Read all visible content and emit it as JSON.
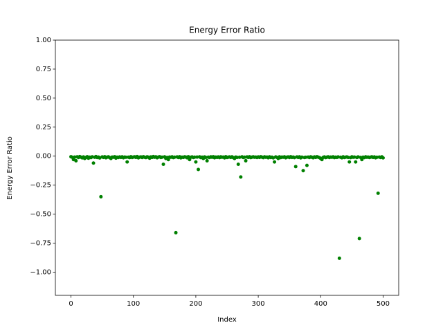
{
  "chart_data": {
    "type": "scatter",
    "title": "Energy Error Ratio",
    "xlabel": "Index",
    "ylabel": "Energy Error Ratio",
    "color": "#008000",
    "xlim": [
      -25,
      525
    ],
    "xticks": [
      0,
      100,
      200,
      300,
      400,
      500
    ],
    "ylim": [
      -1.2,
      1.0
    ],
    "yticks": [
      {
        "value": -1.0,
        "label": "−1.00"
      },
      {
        "value": -0.75,
        "label": "−0.75"
      },
      {
        "value": -0.5,
        "label": "−0.50"
      },
      {
        "value": -0.25,
        "label": "−0.25"
      },
      {
        "value": 0,
        "label": "0.00"
      },
      {
        "value": 0.25,
        "label": "0.25"
      },
      {
        "value": 0.5,
        "label": "0.50"
      },
      {
        "value": 0.75,
        "label": "0.75"
      },
      {
        "value": 1.0,
        "label": "1.00"
      }
    ],
    "x": [
      0,
      2,
      4,
      6,
      8,
      10,
      12,
      14,
      16,
      18,
      20,
      22,
      24,
      26,
      28,
      30,
      32,
      34,
      36,
      38,
      40,
      42,
      44,
      46,
      48,
      50,
      52,
      54,
      56,
      58,
      60,
      62,
      64,
      66,
      68,
      70,
      72,
      74,
      76,
      78,
      80,
      82,
      84,
      86,
      88,
      90,
      92,
      94,
      96,
      98,
      100,
      102,
      104,
      106,
      108,
      110,
      112,
      114,
      116,
      118,
      120,
      122,
      124,
      126,
      128,
      130,
      132,
      134,
      136,
      138,
      140,
      142,
      144,
      146,
      148,
      150,
      152,
      154,
      156,
      158,
      160,
      162,
      164,
      166,
      168,
      170,
      172,
      174,
      176,
      178,
      180,
      182,
      184,
      186,
      188,
      190,
      192,
      194,
      196,
      198,
      200,
      202,
      204,
      206,
      208,
      210,
      212,
      214,
      216,
      218,
      220,
      222,
      224,
      226,
      228,
      230,
      232,
      234,
      236,
      238,
      240,
      242,
      244,
      246,
      248,
      250,
      252,
      254,
      256,
      258,
      260,
      262,
      264,
      266,
      268,
      270,
      272,
      274,
      276,
      278,
      280,
      282,
      284,
      286,
      288,
      290,
      292,
      294,
      296,
      298,
      300,
      302,
      304,
      306,
      308,
      310,
      312,
      314,
      316,
      318,
      320,
      322,
      324,
      326,
      328,
      330,
      332,
      334,
      336,
      338,
      340,
      342,
      344,
      346,
      348,
      350,
      352,
      354,
      356,
      358,
      360,
      362,
      364,
      366,
      368,
      370,
      372,
      374,
      376,
      378,
      380,
      382,
      384,
      386,
      388,
      390,
      392,
      394,
      396,
      398,
      400,
      402,
      404,
      406,
      408,
      410,
      412,
      414,
      416,
      418,
      420,
      422,
      424,
      426,
      428,
      430,
      432,
      434,
      436,
      438,
      440,
      442,
      444,
      446,
      448,
      450,
      452,
      454,
      456,
      458,
      460,
      462,
      464,
      466,
      468,
      470,
      472,
      474,
      476,
      478,
      480,
      482,
      484,
      486,
      488,
      490,
      492,
      494,
      496,
      498,
      500
    ],
    "values": [
      -0.005,
      -0.01,
      -0.03,
      -0.008,
      -0.04,
      -0.006,
      -0.012,
      -0.004,
      -0.009,
      -0.015,
      -0.007,
      -0.02,
      -0.011,
      -0.005,
      -0.018,
      -0.009,
      -0.013,
      -0.006,
      -0.06,
      -0.01,
      -0.004,
      -0.012,
      -0.008,
      -0.016,
      -0.35,
      -0.007,
      -0.011,
      -0.005,
      -0.014,
      -0.009,
      -0.006,
      -0.013,
      -0.02,
      -0.008,
      -0.01,
      -0.005,
      -0.017,
      -0.009,
      -0.012,
      -0.007,
      -0.011,
      -0.006,
      -0.014,
      -0.008,
      -0.01,
      -0.05,
      -0.009,
      -0.013,
      -0.005,
      -0.012,
      -0.008,
      -0.006,
      -0.011,
      -0.004,
      -0.015,
      -0.009,
      -0.007,
      -0.012,
      -0.005,
      -0.01,
      -0.013,
      -0.006,
      -0.009,
      -0.018,
      -0.007,
      -0.011,
      -0.004,
      -0.01,
      -0.006,
      -0.014,
      -0.008,
      -0.005,
      -0.012,
      -0.009,
      -0.07,
      -0.006,
      -0.02,
      -0.011,
      -0.03,
      -0.008,
      -0.01,
      -0.006,
      -0.013,
      -0.009,
      -0.66,
      -0.007,
      -0.012,
      -0.005,
      -0.015,
      -0.009,
      -0.011,
      -0.006,
      -0.008,
      -0.014,
      -0.005,
      -0.03,
      -0.01,
      -0.007,
      -0.012,
      -0.009,
      -0.05,
      -0.008,
      -0.115,
      -0.006,
      -0.013,
      -0.009,
      -0.02,
      -0.007,
      -0.011,
      -0.04,
      -0.009,
      -0.012,
      -0.006,
      -0.01,
      -0.005,
      -0.014,
      -0.008,
      -0.011,
      -0.007,
      -0.013,
      -0.006,
      -0.01,
      -0.008,
      -0.015,
      -0.005,
      -0.012,
      -0.009,
      -0.007,
      -0.011,
      -0.006,
      -0.013,
      -0.02,
      -0.008,
      -0.011,
      -0.07,
      -0.01,
      -0.18,
      -0.006,
      -0.012,
      -0.009,
      -0.04,
      -0.007,
      -0.011,
      -0.005,
      -0.013,
      -0.009,
      -0.006,
      -0.01,
      -0.008,
      -0.012,
      -0.007,
      -0.011,
      -0.005,
      -0.009,
      -0.013,
      -0.006,
      -0.01,
      -0.008,
      -0.014,
      -0.006,
      -0.012,
      -0.009,
      -0.015,
      -0.05,
      -0.007,
      -0.011,
      -0.02,
      -0.006,
      -0.013,
      -0.008,
      -0.01,
      -0.006,
      -0.014,
      -0.009,
      -0.007,
      -0.012,
      -0.005,
      -0.011,
      -0.008,
      -0.013,
      -0.09,
      -0.007,
      -0.011,
      -0.006,
      -0.015,
      -0.009,
      -0.125,
      -0.012,
      -0.01,
      -0.08,
      -0.008,
      -0.012,
      -0.006,
      -0.01,
      -0.014,
      -0.007,
      -0.011,
      -0.005,
      -0.009,
      -0.013,
      -0.02,
      -0.03,
      -0.011,
      -0.007,
      -0.013,
      -0.009,
      -0.006,
      -0.012,
      -0.008,
      -0.01,
      -0.006,
      -0.013,
      -0.009,
      -0.011,
      -0.007,
      -0.88,
      -0.01,
      -0.014,
      -0.006,
      -0.012,
      -0.009,
      -0.007,
      -0.011,
      -0.05,
      -0.013,
      -0.006,
      -0.01,
      -0.008,
      -0.05,
      -0.012,
      -0.007,
      -0.71,
      -0.011,
      -0.03,
      -0.009,
      -0.013,
      -0.006,
      -0.01,
      -0.008,
      -0.012,
      -0.009,
      -0.006,
      -0.011,
      -0.007,
      -0.014,
      -0.01,
      -0.32,
      -0.008,
      -0.012,
      -0.006,
      -0.015
    ]
  }
}
